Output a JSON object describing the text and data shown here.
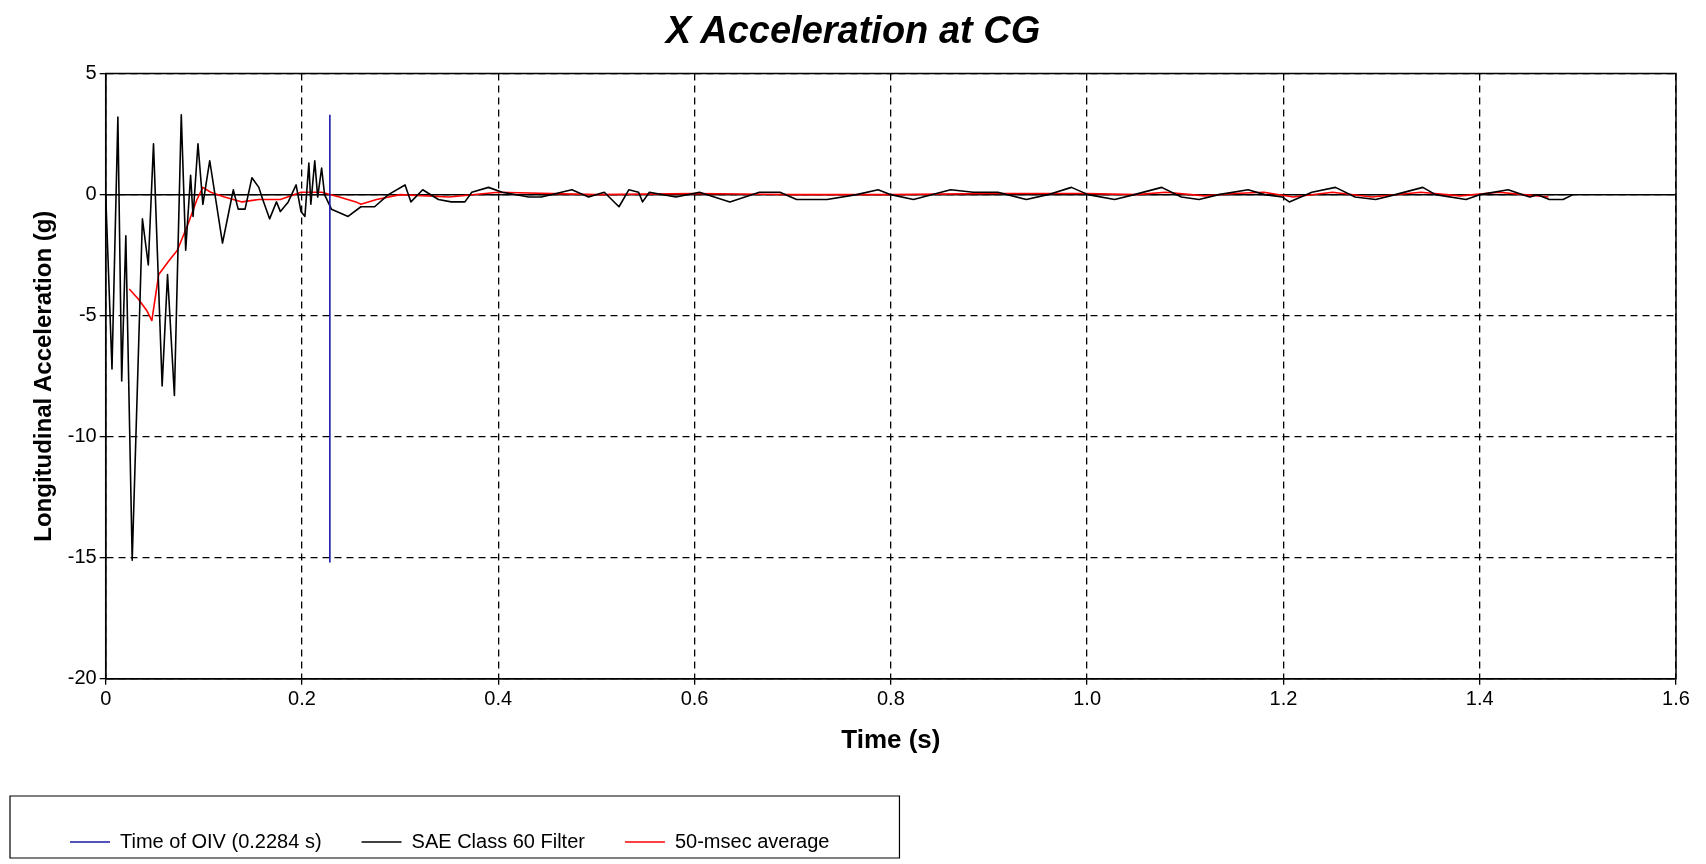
{
  "chart_data": {
    "type": "line",
    "title": "X Acceleration at CG",
    "xlabel": "Time (s)",
    "ylabel": "Longitudinal Acceleration (g)",
    "xlim": [
      0,
      1.6
    ],
    "xticks": [
      0,
      0.2,
      0.4,
      0.6,
      0.8,
      {
        "value": 1,
        "label": "1.0"
      },
      1.2,
      1.4,
      1.6
    ],
    "ylim": [
      -20,
      5
    ],
    "yticks": [
      -20,
      -15,
      -10,
      -5,
      0,
      5
    ],
    "grid": true,
    "legend": "bottom",
    "line_style": "solid",
    "marker": "none",
    "ref_lines": [
      {
        "axis": "y",
        "value": 0,
        "color": "#000000"
      }
    ],
    "series": [
      {
        "name": "Time of OIV (0.2284 s)",
        "color": "#1a1aa6",
        "x": [
          0.2284,
          0.2284
        ],
        "values": [
          -15.2,
          3.3
        ]
      },
      {
        "name": "SAE Class 60 Filter",
        "color": "#000000",
        "x": [
          0,
          0.0064,
          0.0124,
          0.0163,
          0.0205,
          0.027,
          0.0374,
          0.0434,
          0.0487,
          0.0575,
          0.063,
          0.07,
          0.077,
          0.0815,
          0.0865,
          0.089,
          0.094,
          0.099,
          0.106,
          0.119,
          0.125,
          0.13,
          0.135,
          0.142,
          0.149,
          0.156,
          0.16,
          0.167,
          0.174,
          0.178,
          0.186,
          0.194,
          0.199,
          0.203,
          0.207,
          0.209,
          0.213,
          0.216,
          0.22,
          0.223,
          0.23,
          0.247,
          0.26,
          0.274,
          0.288,
          0.305,
          0.311,
          0.323,
          0.339,
          0.352,
          0.366,
          0.373,
          0.39,
          0.404,
          0.431,
          0.444,
          0.475,
          0.492,
          0.508,
          0.523,
          0.533,
          0.543,
          0.547,
          0.554,
          0.581,
          0.605,
          0.636,
          0.666,
          0.687,
          0.704,
          0.735,
          0.765,
          0.787,
          0.8,
          0.823,
          0.861,
          0.884,
          0.909,
          0.938,
          0.96,
          0.984,
          1.001,
          1.028,
          1.048,
          1.076,
          1.096,
          1.114,
          1.134,
          1.164,
          1.181,
          1.199,
          1.206,
          1.229,
          1.253,
          1.273,
          1.294,
          1.314,
          1.342,
          1.355,
          1.386,
          1.4,
          1.429,
          1.451,
          1.459,
          1.471,
          1.485,
          1.495
        ],
        "values": [
          0,
          -7.2,
          3.2,
          -7.7,
          -1.7,
          -15.1,
          -1.0,
          -2.9,
          2.1,
          -7.9,
          -3.3,
          -8.3,
          3.3,
          -2.3,
          0.8,
          -0.9,
          2.1,
          -0.4,
          1.4,
          -2.0,
          -0.8,
          0.2,
          -0.6,
          -0.6,
          0.7,
          0.3,
          -0.2,
          -1.0,
          -0.3,
          -0.7,
          -0.3,
          0.4,
          -0.7,
          -0.9,
          1.3,
          -0.4,
          1.4,
          -0.1,
          1.1,
          0,
          -0.6,
          -0.9,
          -0.5,
          -0.5,
          0,
          0.4,
          -0.3,
          0.2,
          -0.2,
          -0.3,
          -0.3,
          0.1,
          0.3,
          0.1,
          -0.1,
          -0.1,
          0.2,
          -0.1,
          0.1,
          -0.5,
          0.2,
          0.1,
          -0.3,
          0.1,
          -0.1,
          0.1,
          -0.3,
          0.1,
          0.1,
          -0.2,
          -0.2,
          0,
          0.2,
          0,
          -0.2,
          0.2,
          0.1,
          0.1,
          -0.2,
          0,
          0.3,
          0,
          -0.2,
          0,
          0.3,
          -0.1,
          -0.2,
          0,
          0.2,
          0,
          -0.1,
          -0.3,
          0.1,
          0.3,
          -0.1,
          -0.2,
          0,
          0.3,
          0,
          -0.2,
          0,
          0.2,
          -0.1,
          0,
          -0.2,
          -0.2,
          0
        ]
      },
      {
        "name": "50-msec average",
        "color": "#ff0000",
        "x": [
          0.024,
          0.033,
          0.042,
          0.047,
          0.054,
          0.065,
          0.073,
          0.084,
          0.093,
          0.099,
          0.107,
          0.121,
          0.139,
          0.156,
          0.178,
          0.199,
          0.22,
          0.238,
          0.255,
          0.26,
          0.276,
          0.3,
          0.35,
          0.4,
          0.5,
          0.6,
          0.7,
          0.8,
          0.9,
          1.0,
          1.05,
          1.08,
          1.12,
          1.15,
          1.18,
          1.21,
          1.25,
          1.29,
          1.34,
          1.38,
          1.42,
          1.47
        ],
        "values": [
          -3.9,
          -4.3,
          -4.8,
          -5.2,
          -3.3,
          -2.7,
          -2.3,
          -1.2,
          -0.2,
          0.3,
          0.1,
          -0.1,
          -0.3,
          -0.2,
          -0.2,
          0.1,
          0.1,
          -0.1,
          -0.3,
          -0.4,
          -0.2,
          0,
          -0.1,
          0.1,
          0,
          0.05,
          0,
          0,
          0.05,
          0.05,
          0,
          0.1,
          -0.05,
          0.05,
          0.1,
          -0.1,
          0.1,
          -0.1,
          0.1,
          -0.05,
          0.1,
          -0.1
        ]
      }
    ]
  }
}
